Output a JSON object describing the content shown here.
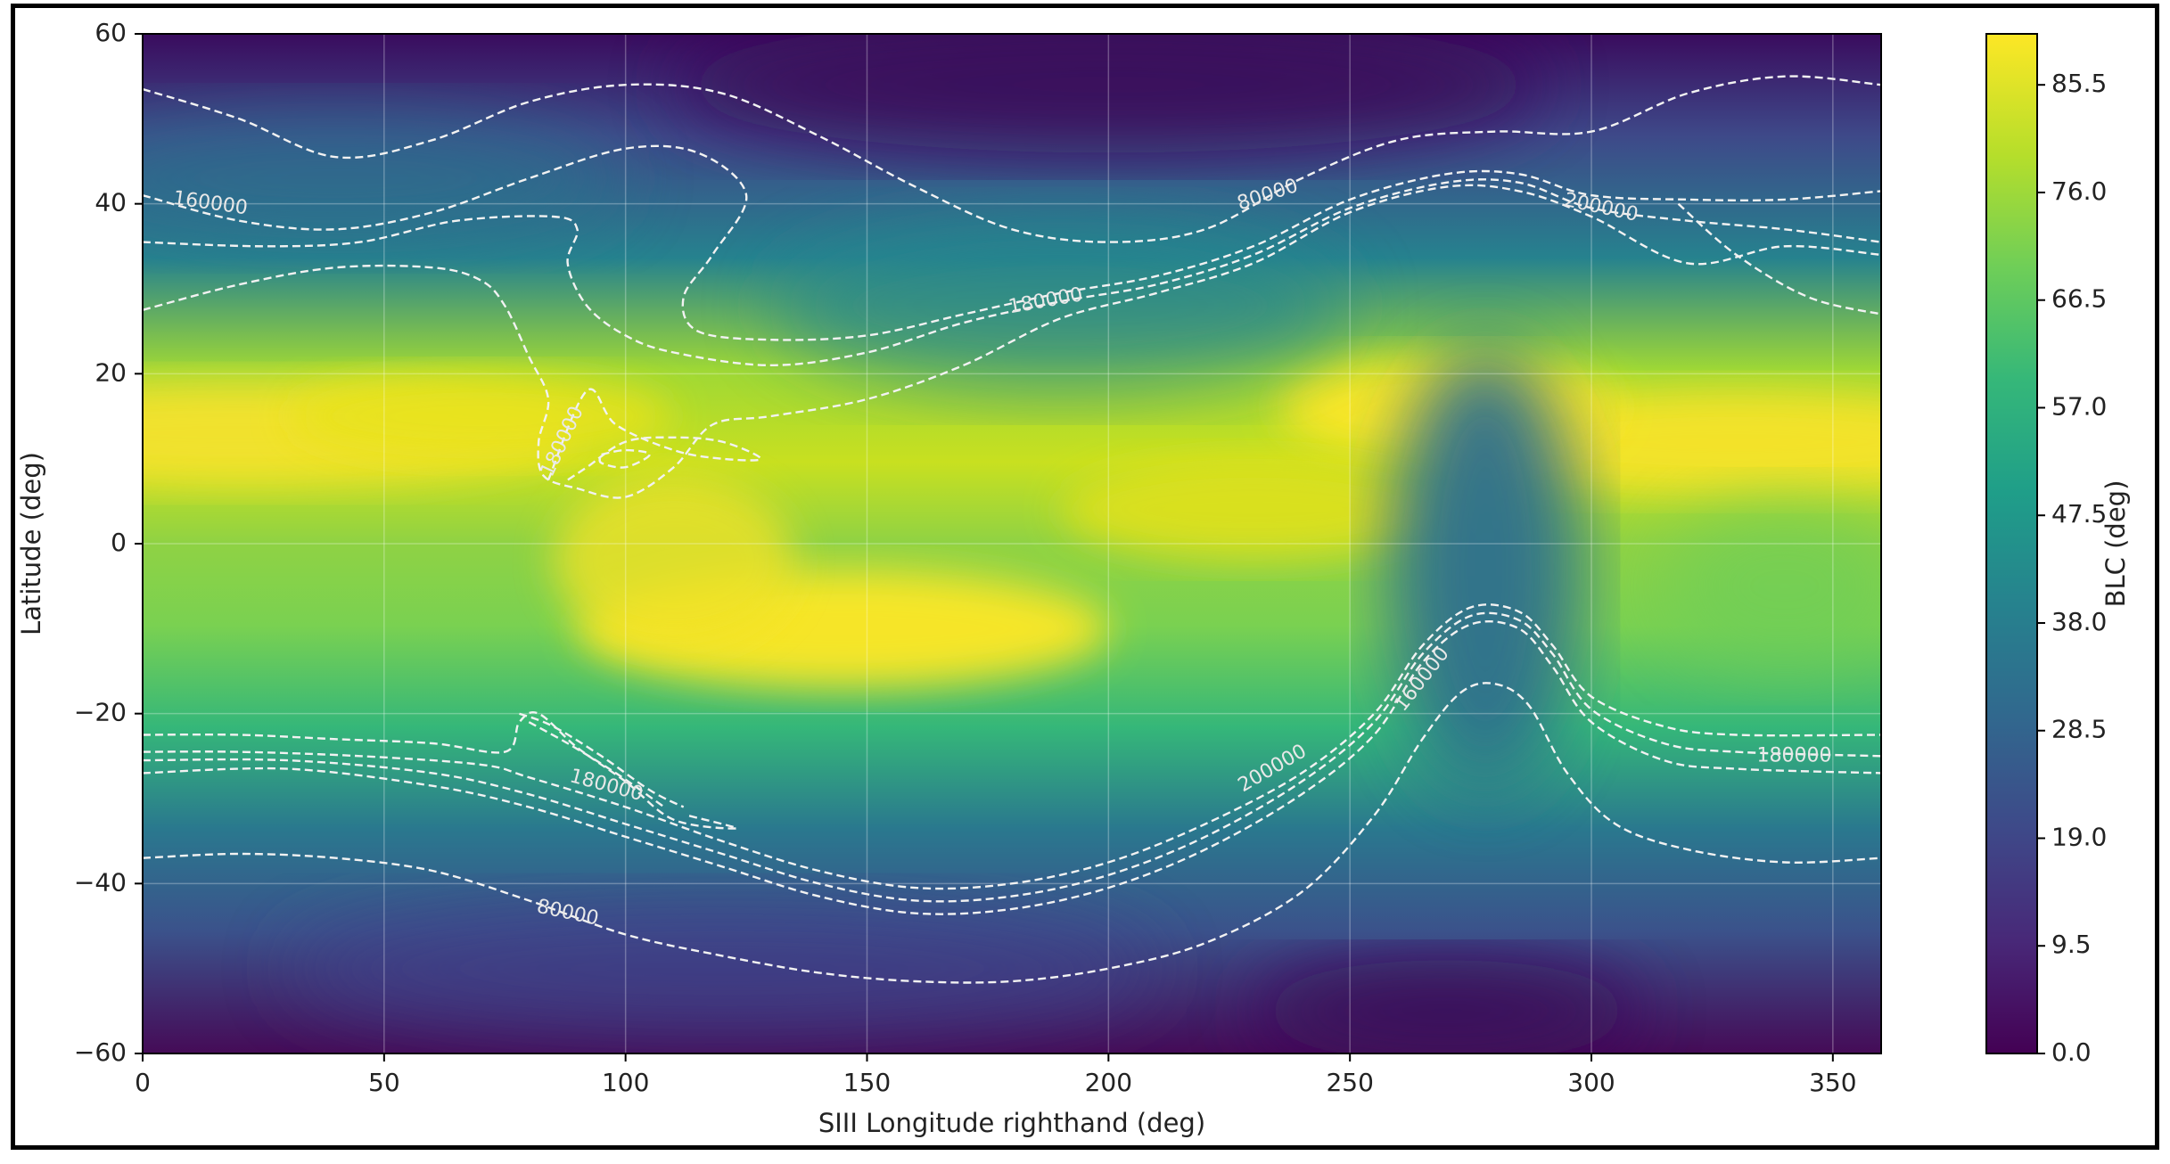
{
  "chart_data": {
    "type": "heatmap",
    "xlabel": "SIII Longitude righthand (deg)",
    "ylabel": "Latitude (deg)",
    "xlim": [
      0,
      360
    ],
    "ylim": [
      -60,
      60
    ],
    "xticks": [
      "0",
      "50",
      "100",
      "150",
      "200",
      "250",
      "300",
      "350"
    ],
    "yticks": [
      "60",
      "40",
      "20",
      "0",
      "−20",
      "−40",
      "−60"
    ],
    "grid": true,
    "colormap": "viridis",
    "colorbar": {
      "label": "BLC (deg)",
      "min": 0.0,
      "max": 90.0,
      "ticks": [
        "0.0",
        "9.5",
        "19.0",
        "28.5",
        "38.0",
        "47.5",
        "57.0",
        "66.5",
        "76.0",
        "85.5"
      ]
    },
    "contour_labels": [
      {
        "text": "160000",
        "lon": 14,
        "lat": 40,
        "angle": 8
      },
      {
        "text": "80000",
        "lon": 233,
        "lat": 41,
        "angle": -18
      },
      {
        "text": "200000",
        "lon": 302,
        "lat": 39.5,
        "angle": 12
      },
      {
        "text": "180000",
        "lon": 187,
        "lat": 28.5,
        "angle": -10
      },
      {
        "text": "180000",
        "lon": 87,
        "lat": 12,
        "angle": -65
      },
      {
        "text": "160000",
        "lon": 265,
        "lat": -16,
        "angle": -52
      },
      {
        "text": "200000",
        "lon": 234,
        "lat": -26.5,
        "angle": -30
      },
      {
        "text": "180000",
        "lon": 96,
        "lat": -28.5,
        "angle": 15
      },
      {
        "text": "180000",
        "lon": 342,
        "lat": -25,
        "angle": 0
      },
      {
        "text": "80000",
        "lon": 88,
        "lat": -43.5,
        "angle": 12
      }
    ],
    "contour_lines": [
      [
        [
          0,
          53.5
        ],
        [
          20,
          50
        ],
        [
          40,
          45.5
        ],
        [
          60,
          47.5
        ],
        [
          80,
          52
        ],
        [
          100,
          54
        ],
        [
          120,
          53
        ],
        [
          140,
          48
        ],
        [
          160,
          42
        ],
        [
          180,
          37
        ],
        [
          200,
          35.5
        ],
        [
          220,
          37
        ],
        [
          240,
          43
        ],
        [
          260,
          47.5
        ],
        [
          280,
          48.5
        ],
        [
          300,
          48.5
        ],
        [
          320,
          53
        ],
        [
          340,
          55
        ],
        [
          360,
          54
        ]
      ],
      [
        [
          0,
          -37
        ],
        [
          20,
          -36.5
        ],
        [
          40,
          -37
        ],
        [
          60,
          -38.5
        ],
        [
          80,
          -42
        ],
        [
          100,
          -46
        ],
        [
          120,
          -48.5
        ],
        [
          140,
          -50.5
        ],
        [
          160,
          -51.5
        ],
        [
          180,
          -51.5
        ],
        [
          200,
          -50
        ],
        [
          220,
          -47
        ],
        [
          240,
          -41
        ],
        [
          255,
          -32
        ],
        [
          265,
          -23
        ],
        [
          273,
          -17.5
        ],
        [
          280,
          -16.5
        ],
        [
          287,
          -19
        ],
        [
          295,
          -27
        ],
        [
          305,
          -33
        ],
        [
          320,
          -36
        ],
        [
          340,
          -37.5
        ],
        [
          360,
          -37
        ]
      ],
      [
        [
          0,
          41
        ],
        [
          20,
          38
        ],
        [
          40,
          37
        ],
        [
          60,
          39
        ],
        [
          80,
          43
        ],
        [
          100,
          46.5
        ],
        [
          115,
          46
        ],
        [
          125,
          41
        ],
        [
          118,
          34
        ],
        [
          112,
          29
        ],
        [
          115,
          25
        ],
        [
          130,
          24
        ],
        [
          150,
          24.5
        ],
        [
          170,
          27
        ],
        [
          190,
          29.5
        ],
        [
          210,
          31.5
        ],
        [
          230,
          35
        ],
        [
          250,
          40.5
        ],
        [
          270,
          43.5
        ],
        [
          285,
          43.5
        ],
        [
          300,
          41
        ],
        [
          320,
          40.5
        ],
        [
          340,
          40.5
        ],
        [
          360,
          41.5
        ]
      ],
      [
        [
          0,
          35.5
        ],
        [
          25,
          35
        ],
        [
          45,
          35.5
        ],
        [
          65,
          38
        ],
        [
          85,
          38.5
        ],
        [
          90,
          37
        ],
        [
          88,
          33
        ],
        [
          92,
          28
        ],
        [
          100,
          24.5
        ],
        [
          110,
          22.5
        ],
        [
          130,
          21
        ],
        [
          150,
          22.5
        ],
        [
          170,
          26
        ],
        [
          190,
          28.5
        ],
        [
          210,
          30.5
        ],
        [
          230,
          34
        ],
        [
          250,
          39.5
        ],
        [
          270,
          42.5
        ],
        [
          285,
          42.5
        ],
        [
          300,
          39.5
        ],
        [
          320,
          38
        ],
        [
          340,
          37
        ],
        [
          360,
          35.5
        ]
      ],
      [
        [
          0,
          27.5
        ],
        [
          20,
          30.5
        ],
        [
          40,
          32.5
        ],
        [
          60,
          32.5
        ],
        [
          70,
          31
        ],
        [
          75,
          28
        ],
        [
          80,
          22
        ],
        [
          84,
          17
        ],
        [
          82,
          12
        ],
        [
          83,
          8
        ],
        [
          90,
          6.5
        ],
        [
          100,
          5.5
        ],
        [
          110,
          9
        ],
        [
          118,
          14
        ],
        [
          130,
          15
        ],
        [
          150,
          17
        ],
        [
          170,
          21
        ],
        [
          190,
          26.5
        ],
        [
          210,
          29.5
        ],
        [
          230,
          33
        ],
        [
          250,
          39
        ],
        [
          270,
          42
        ],
        [
          285,
          41.5
        ],
        [
          300,
          38.5
        ],
        [
          320,
          33
        ],
        [
          340,
          35
        ],
        [
          360,
          34
        ]
      ],
      [
        [
          318,
          40
        ],
        [
          330,
          34
        ],
        [
          345,
          29
        ],
        [
          360,
          27
        ]
      ],
      [
        [
          95,
          10.5
        ],
        [
          100,
          11
        ],
        [
          105,
          10.5
        ],
        [
          100,
          9
        ],
        [
          95,
          9.5
        ],
        [
          95,
          10.5
        ]
      ],
      [
        [
          84,
          7.5
        ],
        [
          92,
          18
        ],
        [
          98,
          14
        ],
        [
          110,
          11
        ],
        [
          120,
          10
        ],
        [
          128,
          10
        ],
        [
          120,
          12
        ],
        [
          110,
          12.5
        ],
        [
          100,
          12
        ],
        [
          92,
          9
        ],
        [
          88,
          7.5
        ]
      ],
      [
        [
          0,
          -22.5
        ],
        [
          20,
          -22.5
        ],
        [
          40,
          -23
        ],
        [
          60,
          -23.5
        ],
        [
          75,
          -24.5
        ],
        [
          78,
          -21
        ],
        [
          82,
          -20
        ],
        [
          90,
          -24
        ],
        [
          100,
          -28
        ],
        [
          110,
          -32.5
        ],
        [
          123,
          -33.5
        ],
        [
          113,
          -32
        ]
      ],
      [
        [
          0,
          -24.5
        ],
        [
          20,
          -24.5
        ],
        [
          45,
          -25
        ],
        [
          70,
          -26
        ],
        [
          80,
          -27.5
        ],
        [
          100,
          -31
        ],
        [
          120,
          -35
        ],
        [
          140,
          -38.5
        ],
        [
          160,
          -40.5
        ],
        [
          180,
          -40
        ],
        [
          200,
          -37.5
        ],
        [
          220,
          -33
        ],
        [
          240,
          -27
        ],
        [
          255,
          -20
        ],
        [
          265,
          -12
        ],
        [
          275,
          -7.5
        ],
        [
          285,
          -8
        ],
        [
          292,
          -12
        ],
        [
          300,
          -18
        ],
        [
          315,
          -21.5
        ],
        [
          330,
          -22.5
        ],
        [
          360,
          -22.5
        ]
      ],
      [
        [
          0,
          -25.5
        ],
        [
          30,
          -25.5
        ],
        [
          60,
          -27
        ],
        [
          80,
          -29.5
        ],
        [
          100,
          -33
        ],
        [
          120,
          -36.5
        ],
        [
          140,
          -40
        ],
        [
          160,
          -42
        ],
        [
          180,
          -41.5
        ],
        [
          200,
          -39
        ],
        [
          220,
          -34.5
        ],
        [
          240,
          -28
        ],
        [
          255,
          -21
        ],
        [
          265,
          -13
        ],
        [
          275,
          -8.5
        ],
        [
          285,
          -9
        ],
        [
          292,
          -13
        ],
        [
          300,
          -19.5
        ],
        [
          315,
          -23.5
        ],
        [
          330,
          -24.5
        ],
        [
          360,
          -25
        ]
      ],
      [
        [
          0,
          -27
        ],
        [
          30,
          -26.5
        ],
        [
          60,
          -28.5
        ],
        [
          80,
          -31
        ],
        [
          100,
          -34.5
        ],
        [
          120,
          -38
        ],
        [
          140,
          -41.5
        ],
        [
          160,
          -43.5
        ],
        [
          180,
          -43
        ],
        [
          200,
          -40.5
        ],
        [
          220,
          -36
        ],
        [
          240,
          -29.5
        ],
        [
          255,
          -22.5
        ],
        [
          265,
          -14
        ],
        [
          275,
          -9.5
        ],
        [
          285,
          -10
        ],
        [
          292,
          -14.5
        ],
        [
          300,
          -21
        ],
        [
          315,
          -25.5
        ],
        [
          330,
          -26.5
        ],
        [
          360,
          -27
        ]
      ],
      [
        [
          78,
          -20
        ],
        [
          85,
          -21.5
        ],
        [
          95,
          -25
        ],
        [
          105,
          -29
        ],
        [
          112,
          -31
        ]
      ],
      [
        [
          80,
          -21
        ],
        [
          88,
          -23.5
        ],
        [
          98,
          -27
        ],
        [
          108,
          -31
        ]
      ]
    ]
  }
}
